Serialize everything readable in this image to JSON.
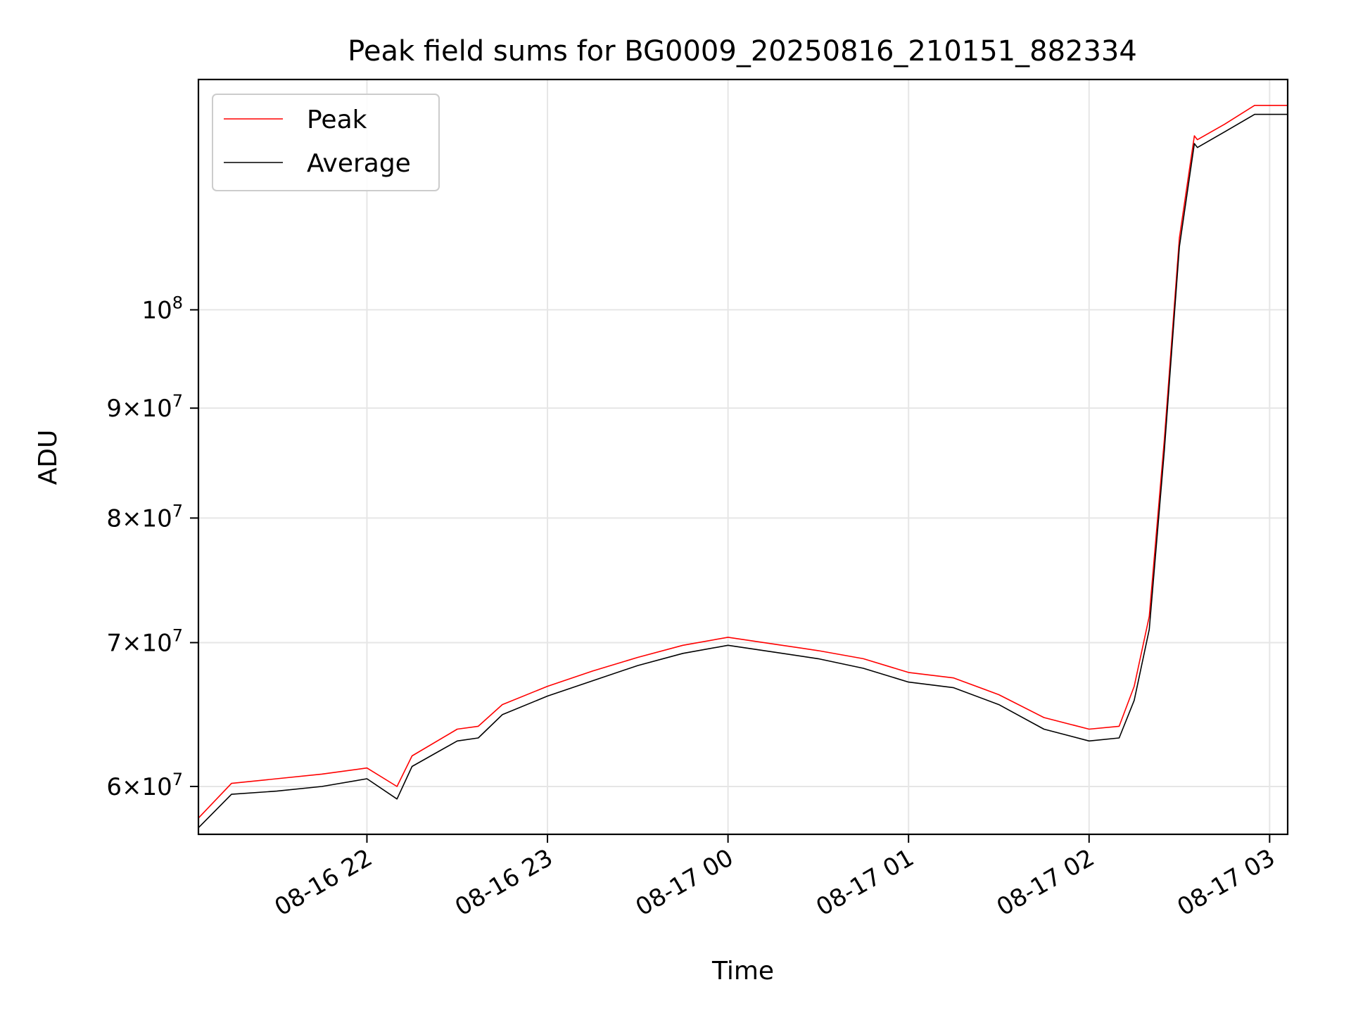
{
  "chart_data": {
    "type": "line",
    "title": "Peak field sums for BG0009_20250816_210151_882334",
    "xlabel": "Time",
    "ylabel": "ADU",
    "x_axis_type": "time",
    "xlim": [
      "2025-08-16 21:04",
      "2025-08-17 03:06"
    ],
    "y_scale": "log",
    "ylim": [
      57000000,
      128000000
    ],
    "xticks": [
      {
        "value": "2025-08-16 22:00",
        "label": "08-16 22"
      },
      {
        "value": "2025-08-16 23:00",
        "label": "08-16 23"
      },
      {
        "value": "2025-08-17 00:00",
        "label": "08-17 00"
      },
      {
        "value": "2025-08-17 01:00",
        "label": "08-17 01"
      },
      {
        "value": "2025-08-17 02:00",
        "label": "08-17 02"
      },
      {
        "value": "2025-08-17 03:00",
        "label": "08-17 03"
      }
    ],
    "yticks": [
      {
        "value": 60000000,
        "mantissa": "6",
        "base": "10",
        "exp": "7"
      },
      {
        "value": 70000000,
        "mantissa": "7",
        "base": "10",
        "exp": "7"
      },
      {
        "value": 80000000,
        "mantissa": "8",
        "base": "10",
        "exp": "7"
      },
      {
        "value": 90000000,
        "mantissa": "9",
        "base": "10",
        "exp": "7"
      },
      {
        "value": 100000000,
        "mantissa": "",
        "base": "10",
        "exp": "8"
      }
    ],
    "grid": true,
    "legend_position": "top-left",
    "series": [
      {
        "name": "Peak",
        "color": "#ff0000",
        "x": [
          "2025-08-16 21:04",
          "2025-08-16 21:15",
          "2025-08-16 21:30",
          "2025-08-16 21:45",
          "2025-08-16 22:00",
          "2025-08-16 22:10",
          "2025-08-16 22:15",
          "2025-08-16 22:30",
          "2025-08-16 22:37",
          "2025-08-16 22:45",
          "2025-08-16 23:00",
          "2025-08-16 23:15",
          "2025-08-16 23:30",
          "2025-08-16 23:45",
          "2025-08-17 00:00",
          "2025-08-17 00:15",
          "2025-08-17 00:30",
          "2025-08-17 00:45",
          "2025-08-17 01:00",
          "2025-08-17 01:15",
          "2025-08-17 01:30",
          "2025-08-17 01:45",
          "2025-08-17 02:00",
          "2025-08-17 02:10",
          "2025-08-17 02:15",
          "2025-08-17 02:20",
          "2025-08-17 02:25",
          "2025-08-17 02:30",
          "2025-08-17 02:35",
          "2025-08-17 02:36",
          "2025-08-17 02:45",
          "2025-08-17 02:55",
          "2025-08-17 03:06"
        ],
        "values": [
          58000000,
          60200000,
          60500000,
          60800000,
          61200000,
          60000000,
          62000000,
          63800000,
          64000000,
          65500000,
          66800000,
          67900000,
          68900000,
          69800000,
          70400000,
          69900000,
          69400000,
          68800000,
          67800000,
          67400000,
          66200000,
          64600000,
          63800000,
          64000000,
          66800000,
          72000000,
          87000000,
          108000000,
          120500000,
          120000000,
          122000000,
          124500000,
          124500000
        ]
      },
      {
        "name": "Average",
        "color": "#000000",
        "x": [
          "2025-08-16 21:04",
          "2025-08-16 21:15",
          "2025-08-16 21:30",
          "2025-08-16 21:45",
          "2025-08-16 22:00",
          "2025-08-16 22:10",
          "2025-08-16 22:15",
          "2025-08-16 22:30",
          "2025-08-16 22:37",
          "2025-08-16 22:45",
          "2025-08-16 23:00",
          "2025-08-16 23:15",
          "2025-08-16 23:30",
          "2025-08-16 23:45",
          "2025-08-17 00:00",
          "2025-08-17 00:15",
          "2025-08-17 00:30",
          "2025-08-17 00:45",
          "2025-08-17 01:00",
          "2025-08-17 01:15",
          "2025-08-17 01:30",
          "2025-08-17 01:45",
          "2025-08-17 02:00",
          "2025-08-17 02:10",
          "2025-08-17 02:15",
          "2025-08-17 02:20",
          "2025-08-17 02:25",
          "2025-08-17 02:30",
          "2025-08-17 02:35",
          "2025-08-17 02:36",
          "2025-08-17 02:45",
          "2025-08-17 02:55",
          "2025-08-17 03:06"
        ],
        "values": [
          57400000,
          59500000,
          59700000,
          60000000,
          60500000,
          59200000,
          61300000,
          63000000,
          63200000,
          64800000,
          66100000,
          67200000,
          68300000,
          69200000,
          69800000,
          69300000,
          68800000,
          68100000,
          67100000,
          66700000,
          65500000,
          63800000,
          63000000,
          63200000,
          65800000,
          71000000,
          86000000,
          107000000,
          119500000,
          119000000,
          121000000,
          123300000,
          123300000
        ]
      }
    ]
  }
}
